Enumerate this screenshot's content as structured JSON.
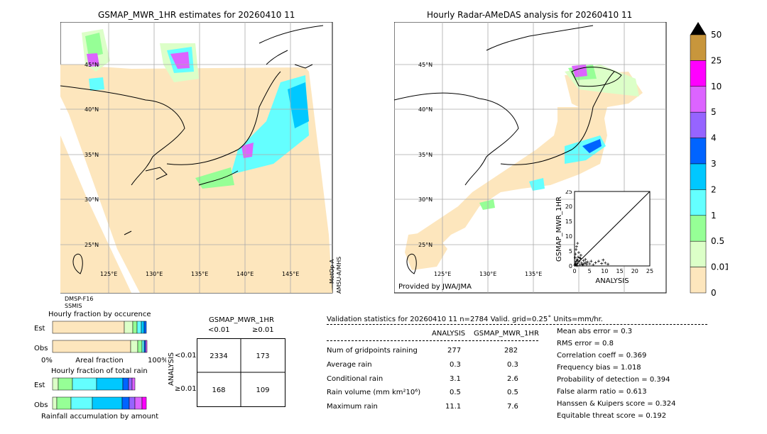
{
  "left_map": {
    "title": "GSMAP_MWR_1HR estimates for 20260410 11",
    "lat_labels": [
      "45°N",
      "40°N",
      "35°N",
      "30°N",
      "25°N"
    ],
    "lon_labels": [
      "125°E",
      "130°E",
      "135°E",
      "140°E",
      "145°E"
    ],
    "sensor_left": [
      "DMSP-F16",
      "SSMIS"
    ],
    "sensor_right": [
      "MetOp-A",
      "AMSU-A/MHS"
    ]
  },
  "right_map": {
    "title": "Hourly Radar-AMeDAS analysis for 20260410 11",
    "lat_labels": [
      "45°N",
      "40°N",
      "35°N",
      "30°N",
      "25°N"
    ],
    "lon_labels": [
      "125°E",
      "130°E",
      "135°E"
    ],
    "credit": "Provided by JWA/JMA"
  },
  "colorbar": {
    "labels": [
      "50",
      "25",
      "10",
      "5",
      "4",
      "3",
      "2",
      "1",
      "0.5",
      "0.01",
      "0"
    ],
    "colors": [
      "#c8963c",
      "#ff00ff",
      "#dc64ff",
      "#9664ff",
      "#0064ff",
      "#00c8ff",
      "#64ffff",
      "#96ff96",
      "#dcffc8",
      "#fde6bd"
    ]
  },
  "occurrence": {
    "title": "Hourly fraction by occurence",
    "rows": [
      "Est",
      "Obs"
    ],
    "axis": [
      "0%",
      "Areal fraction",
      "100%"
    ]
  },
  "amount": {
    "title": "Hourly fraction of total rain",
    "rows": [
      "Est",
      "Obs"
    ],
    "xlabel": "Rainfall accumulation by amount"
  },
  "contingency": {
    "title": "GSMAP_MWR_1HR",
    "col_labels": [
      "<0.01",
      "≥0.01"
    ],
    "row_labels": [
      "<0.01",
      "≥0.01"
    ],
    "ylabel": "ANALYSIS",
    "cells": [
      [
        "2334",
        "173"
      ],
      [
        "168",
        "109"
      ]
    ]
  },
  "validation": {
    "header": "Validation statistics for 20260410 11  n=2784 Valid. grid=0.25˚ Units=mm/hr.",
    "col_analysis": "ANALYSIS",
    "col_gsmap": "GSMAP_MWR_1HR",
    "rows": [
      {
        "label": "Num of gridpoints raining",
        "analysis": "277",
        "gsmap": "282"
      },
      {
        "label": "Average rain",
        "analysis": "0.3",
        "gsmap": "0.3"
      },
      {
        "label": "Conditional rain",
        "analysis": "3.1",
        "gsmap": "2.6"
      },
      {
        "label": "Rain volume (mm km²10⁶)",
        "analysis": "0.5",
        "gsmap": "0.5"
      },
      {
        "label": "Maximum rain",
        "analysis": "11.1",
        "gsmap": "7.6"
      }
    ],
    "scores": [
      "Mean abs error =    0.3",
      "RMS error =    0.8",
      "Correlation coeff =  0.369",
      "Frequency bias =  1.018",
      "Probability of detection =  0.394",
      "False alarm ratio =  0.613",
      "Hanssen & Kuipers score =  0.324",
      "Equitable threat score =  0.192"
    ]
  },
  "chart_data": {
    "type": "scatter",
    "xlabel": "ANALYSIS",
    "ylabel": "GSMAP_MWR_1HR",
    "xlim": [
      0,
      25
    ],
    "ylim": [
      0,
      25
    ],
    "ticks": [
      "0",
      "5",
      "10",
      "15",
      "20",
      "25"
    ],
    "points": [
      [
        0.2,
        0.5
      ],
      [
        0.4,
        1.2
      ],
      [
        0.6,
        0.3
      ],
      [
        0.8,
        2.1
      ],
      [
        1.0,
        0.8
      ],
      [
        1.2,
        3.0
      ],
      [
        1.5,
        1.5
      ],
      [
        1.8,
        0.4
      ],
      [
        2.0,
        2.5
      ],
      [
        2.3,
        1.0
      ],
      [
        2.6,
        0.6
      ],
      [
        3.0,
        1.8
      ],
      [
        3.3,
        0.9
      ],
      [
        3.6,
        2.2
      ],
      [
        4.0,
        0.5
      ],
      [
        4.4,
        1.3
      ],
      [
        5.0,
        0.7
      ],
      [
        5.5,
        1.6
      ],
      [
        6.2,
        0.4
      ],
      [
        7.0,
        1.1
      ],
      [
        8.0,
        1.6
      ],
      [
        9.0,
        0.8
      ],
      [
        9.5,
        2.0
      ],
      [
        10.2,
        1.0
      ],
      [
        11.1,
        0.6
      ],
      [
        0.3,
        4.0
      ],
      [
        0.5,
        5.5
      ],
      [
        0.7,
        6.5
      ],
      [
        1.0,
        7.6
      ],
      [
        0.2,
        2.8
      ],
      [
        1.4,
        4.5
      ],
      [
        2.1,
        3.6
      ],
      [
        0.1,
        0.2
      ],
      [
        0.6,
        1.6
      ],
      [
        1.1,
        1.9
      ],
      [
        1.7,
        2.7
      ],
      [
        2.8,
        0.3
      ],
      [
        3.8,
        1.2
      ],
      [
        0.9,
        0.1
      ],
      [
        0.4,
        0.6
      ]
    ]
  }
}
